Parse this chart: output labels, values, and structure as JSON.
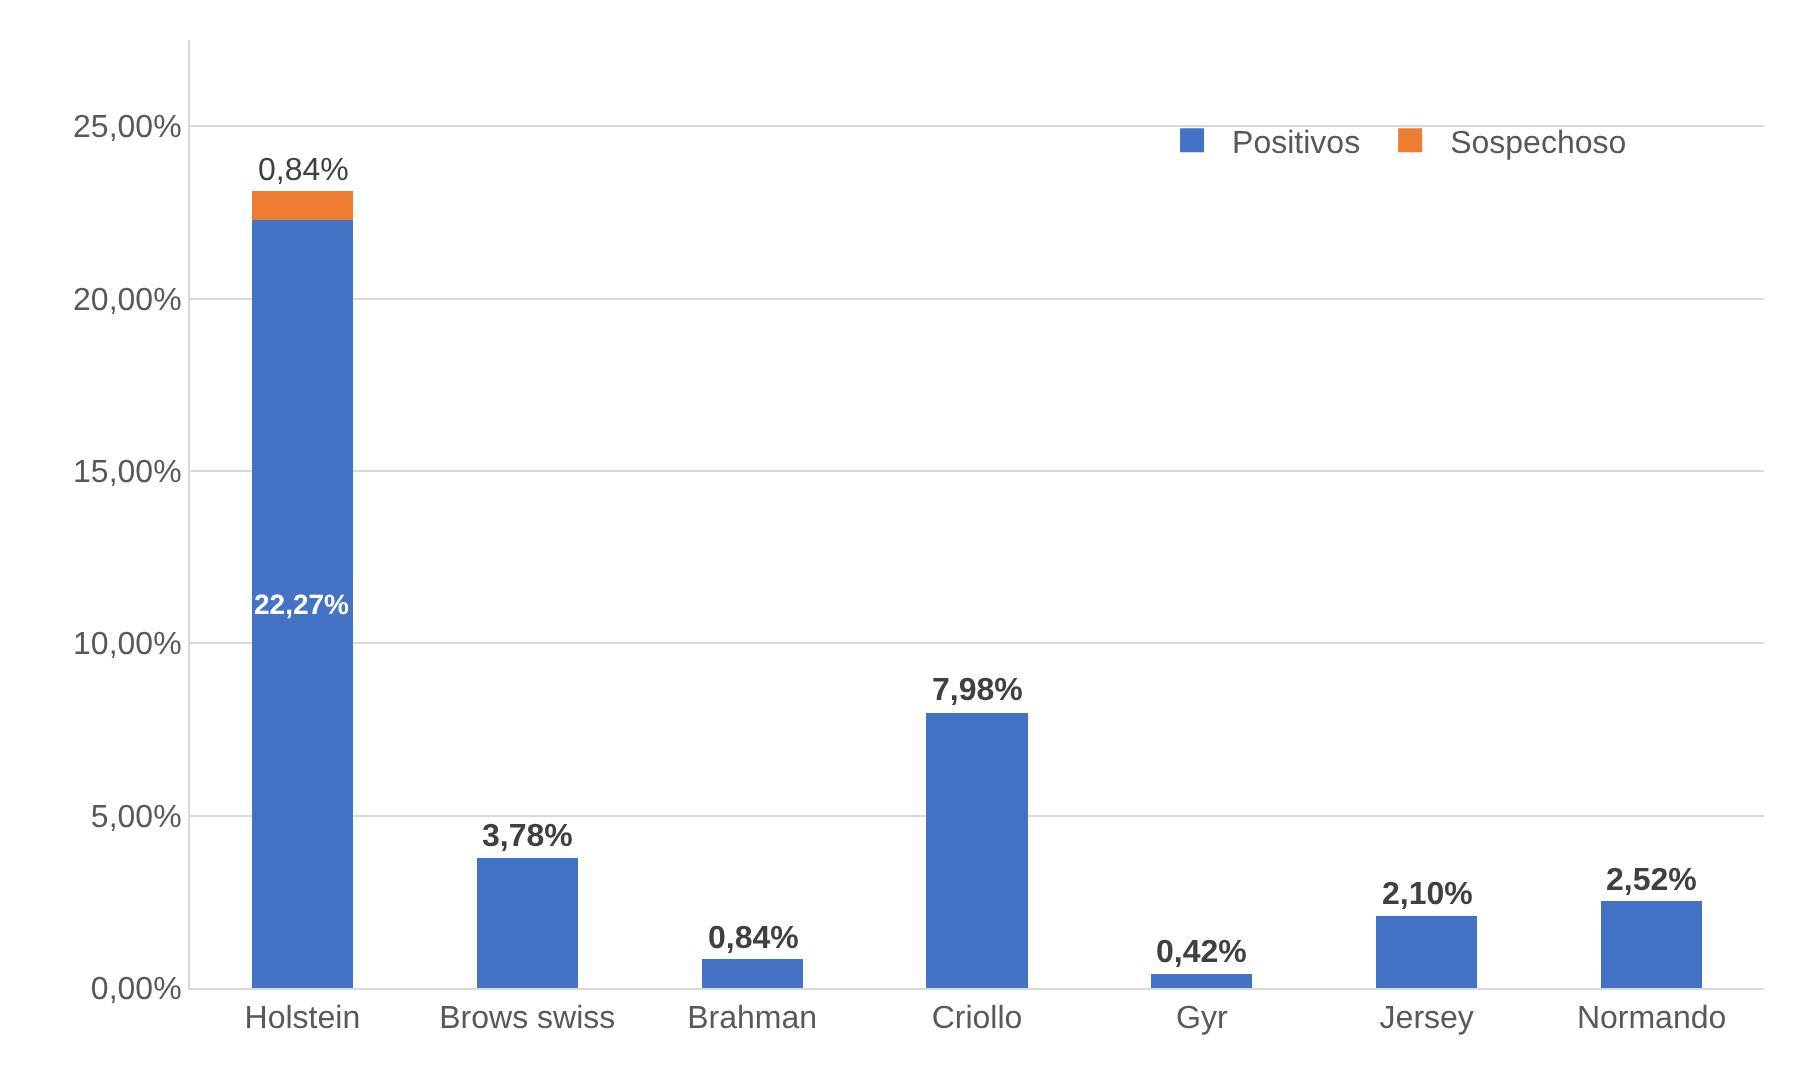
{
  "chart_data": {
    "type": "bar",
    "stacked": true,
    "categories": [
      "Holstein",
      "Brows swiss",
      "Brahman",
      "Criollo",
      "Gyr",
      "Jersey",
      "Normando"
    ],
    "series": [
      {
        "name": "Positivos",
        "color": "#4472c4",
        "values": [
          22.27,
          3.78,
          0.84,
          7.98,
          0.42,
          2.1,
          2.52
        ],
        "value_labels": [
          "22,27%",
          "3,78%",
          "0,84%",
          "7,98%",
          "0,42%",
          "2,10%",
          "2,52%"
        ]
      },
      {
        "name": "Sospechoso",
        "color": "#ed7d31",
        "values": [
          0.84,
          null,
          null,
          null,
          null,
          null,
          null
        ],
        "value_labels": [
          "0,84%",
          null,
          null,
          null,
          null,
          null,
          null
        ]
      }
    ],
    "ylim": [
      0,
      27.5
    ],
    "yticks": [
      {
        "value": 0,
        "label": "0,00%"
      },
      {
        "value": 5,
        "label": "5,00%"
      },
      {
        "value": 10,
        "label": "10,00%"
      },
      {
        "value": 15,
        "label": "15,00%"
      },
      {
        "value": 20,
        "label": "20,00%"
      },
      {
        "value": 25,
        "label": "25,00%"
      }
    ],
    "grid": "y",
    "legend": "top right"
  }
}
